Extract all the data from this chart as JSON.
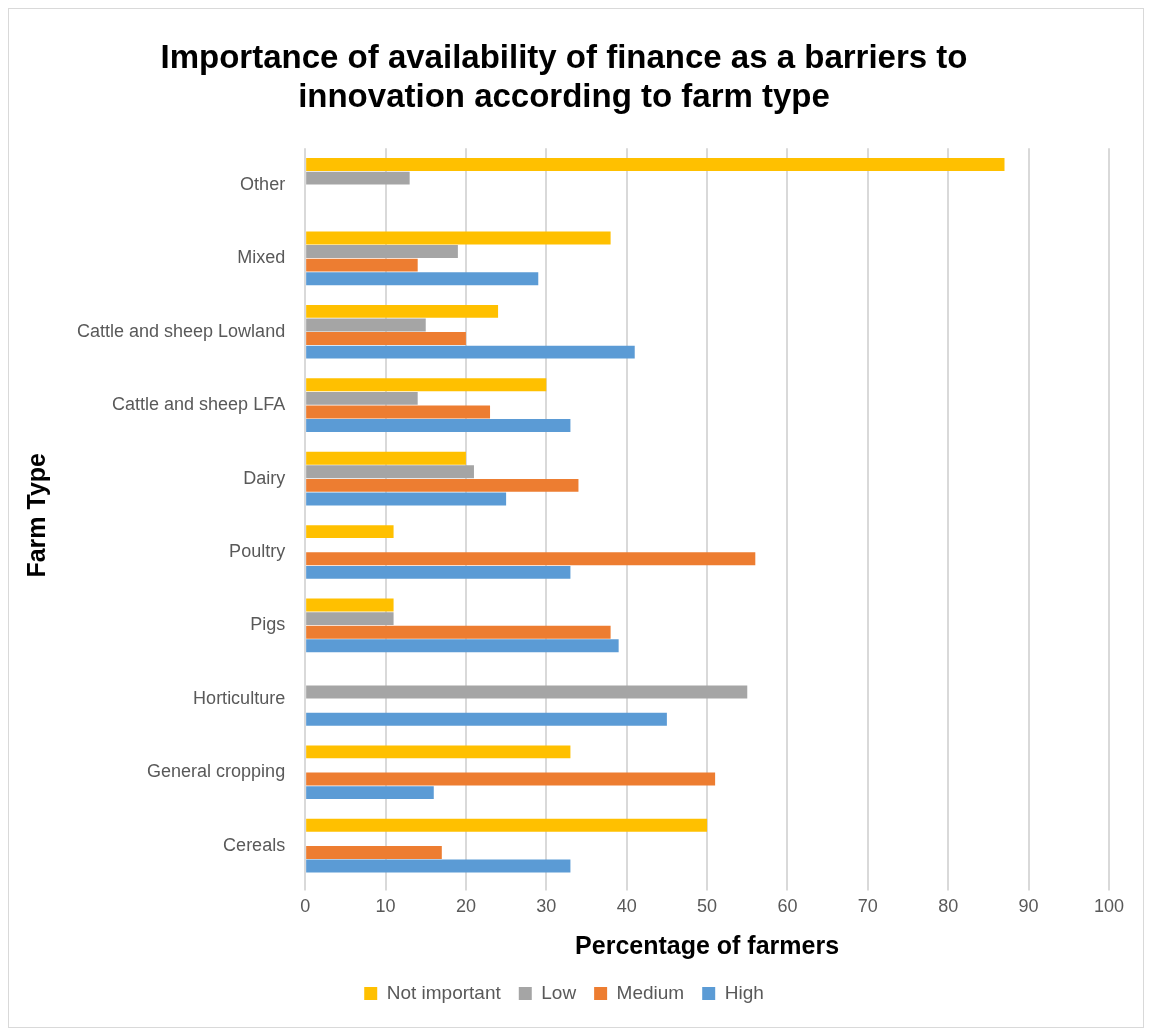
{
  "chart_data": {
    "type": "bar",
    "orientation": "horizontal",
    "title": "Importance of availability of finance as a barriers to innovation according to farm type",
    "xlabel": "Percentage of farmers",
    "ylabel": "Farm Type",
    "categories": [
      "Other",
      "Mixed",
      "Cattle and sheep Lowland",
      "Cattle and sheep LFA",
      "Dairy",
      "Poultry",
      "Pigs",
      "Horticulture",
      "General cropping",
      "Cereals"
    ],
    "series": [
      {
        "name": "Not important",
        "color": "#ffc000",
        "values": [
          87,
          38,
          24,
          30,
          20,
          11,
          11,
          null,
          33,
          50
        ]
      },
      {
        "name": "Low",
        "color": "#a5a5a5",
        "values": [
          13,
          19,
          15,
          14,
          21,
          null,
          11,
          55,
          null,
          null
        ]
      },
      {
        "name": "Medium",
        "color": "#ed7d31",
        "values": [
          null,
          14,
          20,
          23,
          34,
          56,
          38,
          null,
          51,
          17
        ]
      },
      {
        "name": "High",
        "color": "#5b9bd5",
        "values": [
          null,
          29,
          41,
          33,
          25,
          33,
          39,
          45,
          16,
          33
        ]
      }
    ],
    "xlim": [
      0,
      100
    ],
    "xticks": [
      0,
      10,
      20,
      30,
      40,
      50,
      60,
      70,
      80,
      90,
      100
    ],
    "grid": "x",
    "legend": "bottom"
  }
}
